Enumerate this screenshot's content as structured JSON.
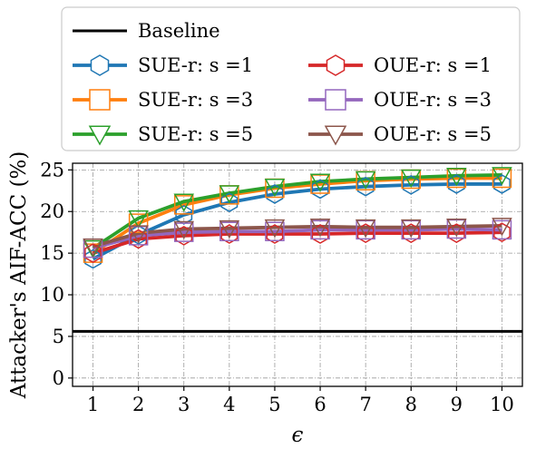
{
  "chart_data": {
    "type": "line",
    "xlabel": "ϵ",
    "ylabel": "Attacker's AIF-ACC (%)",
    "xlim": [
      0.55,
      10.45
    ],
    "ylim": [
      -1,
      25.8
    ],
    "x_ticks": [
      1,
      2,
      3,
      4,
      5,
      6,
      7,
      8,
      9,
      10
    ],
    "y_ticks": [
      0,
      5,
      10,
      15,
      20,
      25
    ],
    "grid": true,
    "legend_position": "top",
    "baseline": {
      "name": "Baseline",
      "value": 5.6,
      "color": "#000000"
    },
    "x": [
      1,
      2,
      3,
      4,
      5,
      6,
      7,
      8,
      9,
      10
    ],
    "series": [
      {
        "name": "SUE-r: s =1",
        "color": "#1f77b4",
        "marker": "hexagon",
        "values": [
          14.3,
          17.2,
          19.6,
          21.1,
          22.1,
          22.7,
          23.0,
          23.2,
          23.3,
          23.3
        ]
      },
      {
        "name": "SUE-r: s =3",
        "color": "#ff7f0e",
        "marker": "square",
        "values": [
          15.0,
          18.6,
          20.8,
          22.0,
          22.8,
          23.3,
          23.7,
          23.9,
          24.0,
          24.0
        ]
      },
      {
        "name": "SUE-r: s =5",
        "color": "#2ca02c",
        "marker": "triangle-down",
        "values": [
          15.6,
          19.2,
          21.2,
          22.2,
          23.0,
          23.6,
          23.9,
          24.1,
          24.3,
          24.4
        ]
      },
      {
        "name": "OUE-r: s =1",
        "color": "#d62728",
        "marker": "hexagon",
        "values": [
          15.0,
          16.7,
          17.1,
          17.3,
          17.3,
          17.3,
          17.4,
          17.4,
          17.4,
          17.5
        ]
      },
      {
        "name": "OUE-r: s =3",
        "color": "#9467bd",
        "marker": "square",
        "values": [
          15.6,
          17.1,
          17.5,
          17.6,
          17.6,
          17.8,
          17.8,
          17.8,
          17.9,
          17.8
        ]
      },
      {
        "name": "OUE-r: s =5",
        "color": "#8c564b",
        "marker": "triangle-down",
        "values": [
          15.8,
          17.4,
          17.9,
          18.0,
          18.1,
          18.2,
          18.1,
          18.1,
          18.2,
          18.3
        ]
      }
    ]
  }
}
